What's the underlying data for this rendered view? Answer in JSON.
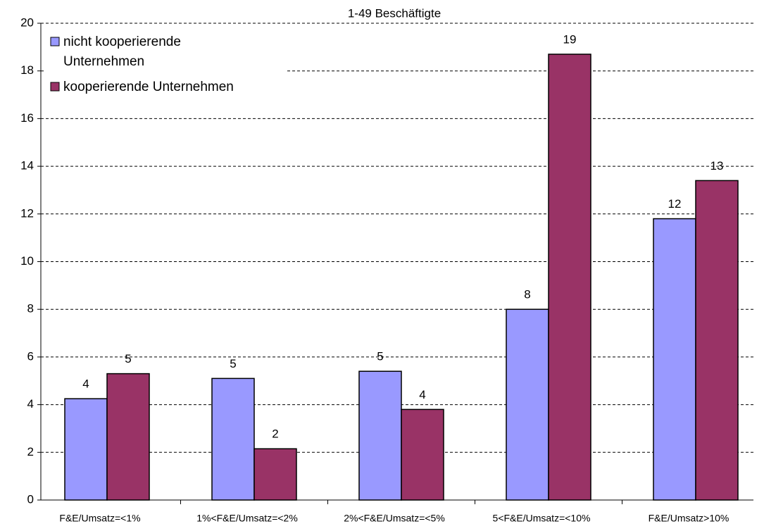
{
  "chart_data": {
    "type": "bar",
    "title": "1-49 Beschäftigte",
    "categories": [
      "F&E/Umsatz=<1%",
      "1%<F&E/Umsatz=<2%",
      "2%<F&E/Umsatz=<5%",
      "5<F&E/Umsatz=<10%",
      "F&E/Umsatz>10%"
    ],
    "series": [
      {
        "name": "nicht kooperierende Unternehmen",
        "color": "#9999ff",
        "values": [
          4.25,
          5.1,
          5.4,
          8.0,
          11.8
        ],
        "value_labels": [
          "4",
          "5",
          "5",
          "8",
          "12"
        ]
      },
      {
        "name": "kooperierende Unternehmen",
        "color": "#993366",
        "values": [
          5.3,
          2.15,
          3.8,
          18.7,
          13.4
        ],
        "value_labels": [
          "5",
          "2",
          "4",
          "19",
          "13"
        ]
      }
    ],
    "ylim": [
      0,
      20
    ],
    "yticks": [
      0,
      2,
      4,
      6,
      8,
      10,
      12,
      14,
      16,
      18,
      20
    ],
    "grid": true,
    "legend": "top-left"
  }
}
